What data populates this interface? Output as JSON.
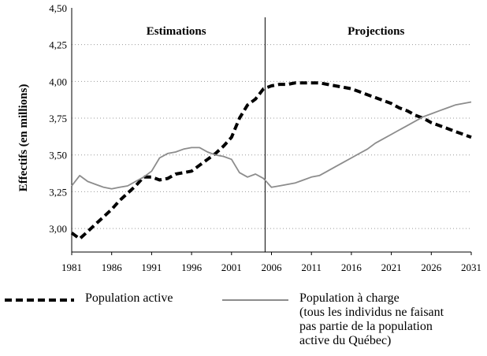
{
  "chart_data": {
    "type": "line",
    "title": "",
    "ylabel": "Effectifs (en millions)",
    "xlabel": "",
    "xlim": [
      1981,
      2031
    ],
    "ylim": [
      2.84,
      4.5
    ],
    "x_ticks": [
      1981,
      1986,
      1991,
      1996,
      2001,
      2006,
      2011,
      2016,
      2021,
      2026,
      2031
    ],
    "y_ticks": [
      3.0,
      3.25,
      3.5,
      3.75,
      4.0,
      4.25,
      4.5
    ],
    "y_tick_labels": [
      "3,00",
      "3,25",
      "3,50",
      "3,75",
      "4,00",
      "4,25",
      "4,50"
    ],
    "grid": "horizontal dotted",
    "divider_year": 2005.2,
    "sections": [
      "Estimations",
      "Projections"
    ],
    "series": [
      {
        "name": "Population active",
        "style": "dashed",
        "color": "#000000",
        "x": [
          1981,
          1982,
          1983,
          1984,
          1985,
          1986,
          1987,
          1988,
          1989,
          1990,
          1991,
          1992,
          1993,
          1994,
          1995,
          1996,
          1997,
          1998,
          1999,
          2000,
          2001,
          2002,
          2003,
          2004,
          2005,
          2006,
          2007,
          2008,
          2009,
          2010,
          2011,
          2012,
          2013,
          2014,
          2015,
          2016,
          2017,
          2018,
          2019,
          2020,
          2021,
          2022,
          2023,
          2024,
          2025,
          2026,
          2027,
          2028,
          2029,
          2030,
          2031
        ],
        "values": [
          2.97,
          2.93,
          2.98,
          3.03,
          3.08,
          3.13,
          3.19,
          3.24,
          3.29,
          3.35,
          3.35,
          3.33,
          3.34,
          3.37,
          3.38,
          3.39,
          3.43,
          3.47,
          3.51,
          3.56,
          3.62,
          3.75,
          3.84,
          3.88,
          3.95,
          3.97,
          3.98,
          3.98,
          3.99,
          3.99,
          3.99,
          3.99,
          3.98,
          3.97,
          3.96,
          3.95,
          3.93,
          3.91,
          3.89,
          3.87,
          3.85,
          3.82,
          3.8,
          3.77,
          3.75,
          3.72,
          3.7,
          3.68,
          3.66,
          3.64,
          3.62
        ]
      },
      {
        "name": "Population à charge\n(tous les individus ne faisant\npas partie de la population\nactive du Québec)",
        "style": "solid",
        "color": "#8c8c8c",
        "x": [
          1981,
          1982,
          1983,
          1984,
          1985,
          1986,
          1987,
          1988,
          1989,
          1990,
          1991,
          1992,
          1993,
          1994,
          1995,
          1996,
          1997,
          1998,
          1999,
          2000,
          2001,
          2002,
          2003,
          2004,
          2005,
          2006,
          2007,
          2008,
          2009,
          2010,
          2011,
          2012,
          2013,
          2014,
          2015,
          2016,
          2017,
          2018,
          2019,
          2020,
          2021,
          2022,
          2023,
          2024,
          2025,
          2026,
          2027,
          2028,
          2029,
          2030,
          2031
        ],
        "values": [
          3.29,
          3.36,
          3.32,
          3.3,
          3.28,
          3.27,
          3.28,
          3.29,
          3.32,
          3.35,
          3.39,
          3.48,
          3.51,
          3.52,
          3.54,
          3.55,
          3.55,
          3.52,
          3.5,
          3.49,
          3.47,
          3.38,
          3.35,
          3.37,
          3.34,
          3.28,
          3.29,
          3.3,
          3.31,
          3.33,
          3.35,
          3.36,
          3.39,
          3.42,
          3.45,
          3.48,
          3.51,
          3.54,
          3.58,
          3.61,
          3.64,
          3.67,
          3.7,
          3.73,
          3.76,
          3.78,
          3.8,
          3.82,
          3.84,
          3.85,
          3.86
        ]
      }
    ]
  }
}
